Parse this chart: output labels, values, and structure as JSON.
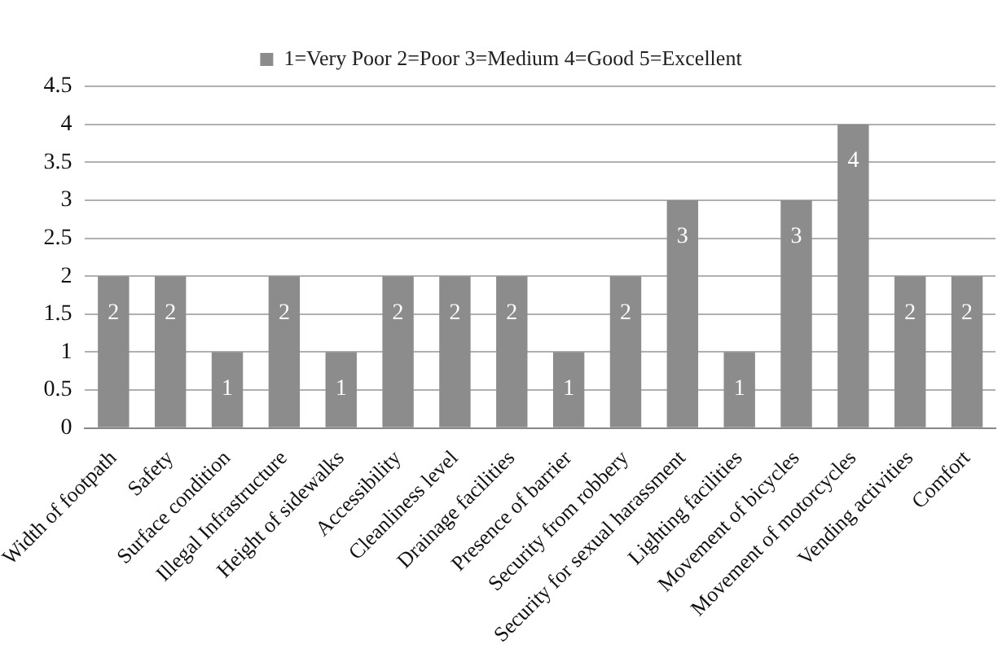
{
  "chart_data": {
    "type": "bar",
    "categories": [
      "Width of footpath",
      "Safety",
      "Surface condition",
      "Illegal Infrastructure",
      "Height of sidewalks",
      "Accessibility",
      "Cleanliness level",
      "Drainage facilities",
      "Presence of barrier",
      "Security from robbery",
      "Security for sexual harassment",
      "Lighting facilities",
      "Movement of bicycles",
      "Movement of motorcycles",
      "Vending activities",
      "Comfort"
    ],
    "series": [
      {
        "name": "1=Very Poor 2=Poor 3=Medium 4=Good 5=Excellent",
        "color": "#8c8c8c",
        "values": [
          2,
          2,
          1,
          2,
          1,
          2,
          2,
          2,
          1,
          2,
          3,
          1,
          3,
          4,
          2,
          2
        ]
      }
    ],
    "ylim": [
      0,
      4.5
    ],
    "yticks": [
      0,
      0.5,
      1,
      1.5,
      2,
      2.5,
      3,
      3.5,
      4,
      4.5
    ],
    "grid": "y",
    "legend": "top",
    "data_labels": true
  }
}
